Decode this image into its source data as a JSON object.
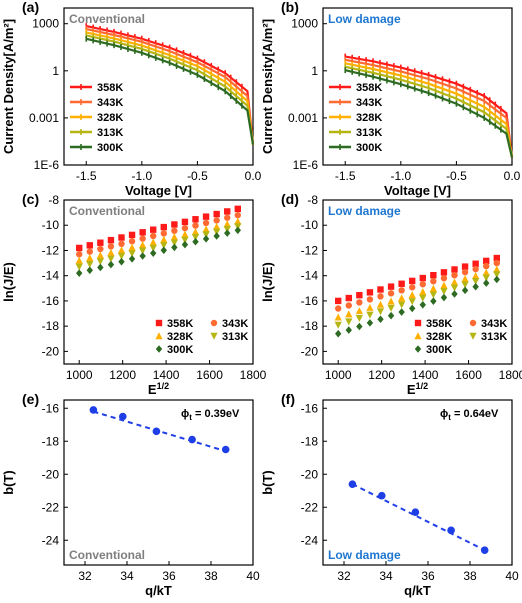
{
  "figure": {
    "panels": [
      {
        "label": "(a)",
        "tag": "Conventional",
        "tag_color": "#7f7f7f"
      },
      {
        "label": "(b)",
        "tag": "Low damage",
        "tag_color": "#1f77d0"
      },
      {
        "label": "(c)",
        "tag": "Conventional",
        "tag_color": "#7f7f7f"
      },
      {
        "label": "(d)",
        "tag": "Low damage",
        "tag_color": "#1f77d0"
      },
      {
        "label": "(e)",
        "tag": "Conventional",
        "tag_color": "#7f7f7f",
        "annotation": "ϕt = 0.39eV"
      },
      {
        "label": "(f)",
        "tag": "Low damage",
        "tag_color": "#1f77d0",
        "annotation": "ϕt = 0.64eV"
      }
    ]
  },
  "series_colors": {
    "358K": "#ff1a1a",
    "343K": "#ff6a33",
    "328K": "#ffb000",
    "313K": "#b5b514",
    "300K": "#2e6b22"
  },
  "fit_color": "#1f3fe6",
  "chart_data": [
    {
      "type": "line",
      "title": "",
      "xlabel": "Voltage [V]",
      "ylabel": "Current Density[A/m²]",
      "xlim": [
        -1.7,
        0.0
      ],
      "ylim": [
        1e-06,
        10000
      ],
      "yscale": "log",
      "xticks": [
        "-1.5",
        "-1.0",
        "-0.5",
        "0.0"
      ],
      "yticks": [
        "1E-6",
        "0.001",
        "1",
        "1000"
      ],
      "legend": "bottom-left",
      "series": [
        {
          "name": "358K",
          "x": [
            -1.5,
            -1.25,
            -1.0,
            -0.75,
            -0.5,
            -0.25,
            -0.05,
            0.0
          ],
          "y": [
            700,
            300,
            110,
            30,
            6,
            0.7,
            0.05,
            2e-05
          ]
        },
        {
          "name": "343K",
          "x": [
            -1.5,
            -1.25,
            -1.0,
            -0.75,
            -0.5,
            -0.25,
            -0.05,
            0.0
          ],
          "y": [
            450,
            190,
            70,
            18,
            3.5,
            0.4,
            0.025,
            2e-05
          ]
        },
        {
          "name": "328K",
          "x": [
            -1.5,
            -1.25,
            -1.0,
            -0.75,
            -0.5,
            -0.25,
            -0.05,
            0.0
          ],
          "y": [
            280,
            115,
            40,
            10,
            2,
            0.2,
            0.012,
            2e-05
          ]
        },
        {
          "name": "313K",
          "x": [
            -1.5,
            -1.25,
            -1.0,
            -0.75,
            -0.5,
            -0.25,
            -0.05,
            0.0
          ],
          "y": [
            180,
            72,
            25,
            6,
            1.1,
            0.1,
            0.006,
            2e-05
          ]
        },
        {
          "name": "300K",
          "x": [
            -1.5,
            -1.25,
            -1.0,
            -0.75,
            -0.5,
            -0.25,
            -0.05,
            0.0
          ],
          "y": [
            110,
            43,
            14,
            3.2,
            0.55,
            0.05,
            0.003,
            2e-05
          ]
        }
      ]
    },
    {
      "type": "line",
      "title": "",
      "xlabel": "Voltage [V]",
      "ylabel": "Current Density[A/m²]",
      "xlim": [
        -1.7,
        0.0
      ],
      "ylim": [
        1e-06,
        10000
      ],
      "yscale": "log",
      "xticks": [
        "-1.5",
        "-1.0",
        "-0.5",
        "0.0"
      ],
      "yticks": [
        "1E-6",
        "0.001",
        "1",
        "1000"
      ],
      "legend": "bottom-left",
      "series": [
        {
          "name": "358K",
          "x": [
            -1.5,
            -1.25,
            -1.0,
            -0.75,
            -0.5,
            -0.25,
            -0.05,
            0.0
          ],
          "y": [
            8,
            4,
            1.6,
            0.55,
            0.15,
            0.025,
            0.002,
            3e-06
          ]
        },
        {
          "name": "343K",
          "x": [
            -1.5,
            -1.25,
            -1.0,
            -0.75,
            -0.5,
            -0.25,
            -0.05,
            0.0
          ],
          "y": [
            5,
            2.3,
            0.9,
            0.3,
            0.075,
            0.012,
            0.001,
            3e-06
          ]
        },
        {
          "name": "328K",
          "x": [
            -1.5,
            -1.25,
            -1.0,
            -0.75,
            -0.5,
            -0.25,
            -0.05,
            0.0
          ],
          "y": [
            3,
            1.3,
            0.5,
            0.15,
            0.035,
            0.005,
            0.0004,
            3e-06
          ]
        },
        {
          "name": "313K",
          "x": [
            -1.5,
            -1.25,
            -1.0,
            -0.75,
            -0.5,
            -0.25,
            -0.05,
            0.0
          ],
          "y": [
            1.8,
            0.75,
            0.27,
            0.08,
            0.017,
            0.0023,
            0.0002,
            3e-06
          ]
        },
        {
          "name": "300K",
          "x": [
            -1.5,
            -1.25,
            -1.0,
            -0.75,
            -0.5,
            -0.25,
            -0.05,
            0.0
          ],
          "y": [
            1.1,
            0.42,
            0.14,
            0.038,
            0.008,
            0.001,
            0.0001,
            3e-06
          ]
        }
      ]
    },
    {
      "type": "scatter",
      "title": "",
      "xlabel": "E^1/2",
      "ylabel": "ln(J/E)",
      "xlim": [
        930,
        1800
      ],
      "ylim": [
        -21,
        -8
      ],
      "xticks": [
        "1000",
        "1200",
        "1400",
        "1600",
        "1800"
      ],
      "yticks": [
        "-20",
        "-18",
        "-16",
        "-14",
        "-12",
        "-10",
        "-8"
      ],
      "legend": "bottom-right",
      "x_start": 1000,
      "x_end": 1730,
      "n_points": 16,
      "series": [
        {
          "name": "358K",
          "marker": "square",
          "y_start": -11.8,
          "y_end": -8.7
        },
        {
          "name": "343K",
          "marker": "circle",
          "y_start": -12.3,
          "y_end": -9.2
        },
        {
          "name": "328K",
          "marker": "triangle",
          "y_start": -12.8,
          "y_end": -9.7
        },
        {
          "name": "313K",
          "marker": "triangle-down",
          "y_start": -13.3,
          "y_end": -10.1
        },
        {
          "name": "300K",
          "marker": "diamond",
          "y_start": -13.8,
          "y_end": -10.4
        }
      ]
    },
    {
      "type": "scatter",
      "title": "",
      "xlabel": "E^1/2",
      "ylabel": "ln(J/E)",
      "xlim": [
        930,
        1800
      ],
      "ylim": [
        -21,
        -8
      ],
      "xticks": [
        "1000",
        "1200",
        "1400",
        "1600",
        "1800"
      ],
      "yticks": [
        "-20",
        "-18",
        "-16",
        "-14",
        "-12",
        "-10",
        "-8"
      ],
      "legend": "bottom-right",
      "x_start": 1000,
      "x_end": 1730,
      "n_points": 16,
      "series": [
        {
          "name": "358K",
          "marker": "square",
          "y_start": -16.0,
          "y_end": -12.6
        },
        {
          "name": "343K",
          "marker": "circle",
          "y_start": -16.6,
          "y_end": -13.0
        },
        {
          "name": "328K",
          "marker": "triangle",
          "y_start": -17.3,
          "y_end": -13.5
        },
        {
          "name": "313K",
          "marker": "triangle-down",
          "y_start": -17.9,
          "y_end": -13.9
        },
        {
          "name": "300K",
          "marker": "diamond",
          "y_start": -18.6,
          "y_end": -14.3
        }
      ]
    },
    {
      "type": "scatter",
      "title": "",
      "xlabel": "q/kT",
      "ylabel": "b(T)",
      "xlim": [
        31,
        40
      ],
      "ylim": [
        -25.5,
        -15.5
      ],
      "xticks": [
        "32",
        "34",
        "36",
        "38",
        "40"
      ],
      "yticks": [
        "-24",
        "-22",
        "-20",
        "-18",
        "-16"
      ],
      "points": {
        "x": [
          32.4,
          33.8,
          35.4,
          37.1,
          38.7
        ],
        "y": [
          -16.1,
          -16.5,
          -17.4,
          -17.9,
          -18.5
        ]
      },
      "fit": {
        "x": [
          32.4,
          38.7
        ],
        "y": [
          -16.2,
          -18.6
        ]
      }
    },
    {
      "type": "scatter",
      "title": "",
      "xlabel": "q/kT",
      "ylabel": "b(T)",
      "xlim": [
        31,
        40
      ],
      "ylim": [
        -25.5,
        -15.5
      ],
      "xticks": [
        "32",
        "34",
        "36",
        "38",
        "40"
      ],
      "yticks": [
        "-24",
        "-22",
        "-20",
        "-18",
        "-16"
      ],
      "points": {
        "x": [
          32.4,
          33.8,
          35.4,
          37.1,
          38.7
        ],
        "y": [
          -20.6,
          -21.3,
          -22.3,
          -23.4,
          -24.6
        ]
      },
      "fit": {
        "x": [
          32.4,
          38.7
        ],
        "y": [
          -20.6,
          -24.6
        ]
      }
    }
  ]
}
